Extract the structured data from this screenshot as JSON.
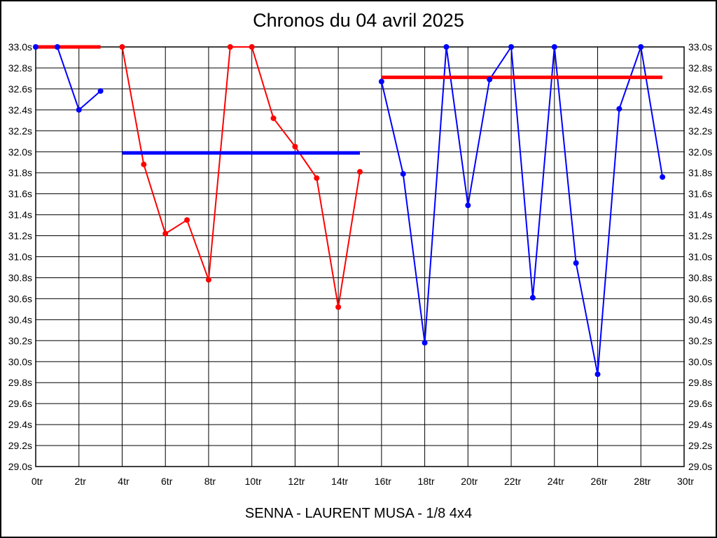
{
  "window": {
    "background": "#ffffff",
    "border_color": "#000000"
  },
  "chart_data": {
    "type": "line",
    "title": "Chronos du 04 avril 2025",
    "caption": "SENNA - LAURENT MUSA - 1/8 4x4",
    "grid": true,
    "legend": "none",
    "colors": {
      "red_series": "#ff0000",
      "blue_series": "#0000ff",
      "grid": "#000000"
    },
    "x_axis": {
      "label_unit": "tr",
      "min": 0,
      "max": 30,
      "tick_step": 2,
      "tick_labels": [
        "0tr",
        "2tr",
        "4tr",
        "6tr",
        "8tr",
        "10tr",
        "12tr",
        "14tr",
        "16tr",
        "18tr",
        "20tr",
        "22tr",
        "24tr",
        "26tr",
        "28tr",
        "30tr"
      ]
    },
    "y_axis": {
      "label_unit": "s",
      "min": 29.0,
      "max": 33.0,
      "tick_step": 0.2,
      "labeled_both_sides": true,
      "tick_labels": [
        "33.0s",
        "32.8s",
        "32.6s",
        "32.4s",
        "32.2s",
        "32.0s",
        "31.8s",
        "31.6s",
        "31.4s",
        "31.2s",
        "31.0s",
        "30.8s",
        "30.6s",
        "30.4s",
        "30.2s",
        "30.0s",
        "29.8s",
        "29.6s",
        "29.4s",
        "29.2s",
        "29.0s"
      ]
    },
    "series": [
      {
        "name": "stint-1-blue",
        "color": "#0000ff",
        "x": [
          0,
          1,
          2,
          3
        ],
        "y": [
          33.0,
          33.0,
          32.4,
          32.58
        ]
      },
      {
        "name": "stint-2-red",
        "color": "#ff0000",
        "x": [
          4,
          5,
          6,
          7,
          8,
          9,
          10,
          11,
          12,
          13,
          14,
          15
        ],
        "y": [
          33.0,
          31.88,
          31.22,
          31.35,
          30.78,
          33.0,
          33.0,
          32.32,
          32.05,
          31.75,
          30.52,
          31.81
        ]
      },
      {
        "name": "stint-3-blue",
        "color": "#0000ff",
        "x": [
          16,
          17,
          18,
          19,
          20,
          21,
          22,
          23,
          24,
          25,
          26,
          27,
          28,
          29
        ],
        "y": [
          32.67,
          31.79,
          30.18,
          33.0,
          31.49,
          32.69,
          33.0,
          30.61,
          33.0,
          30.94,
          29.88,
          32.41,
          33.0,
          31.76
        ]
      }
    ],
    "reference_lines": [
      {
        "name": "ref-line-stint-1",
        "color": "#ff0000",
        "value": 33.0,
        "x_from": 0,
        "x_to": 3
      },
      {
        "name": "ref-line-stint-2",
        "color": "#0000ff",
        "value": 31.99,
        "x_from": 4,
        "x_to": 15
      },
      {
        "name": "ref-line-stint-3",
        "color": "#ff0000",
        "value": 32.71,
        "x_from": 16,
        "x_to": 29
      }
    ]
  }
}
